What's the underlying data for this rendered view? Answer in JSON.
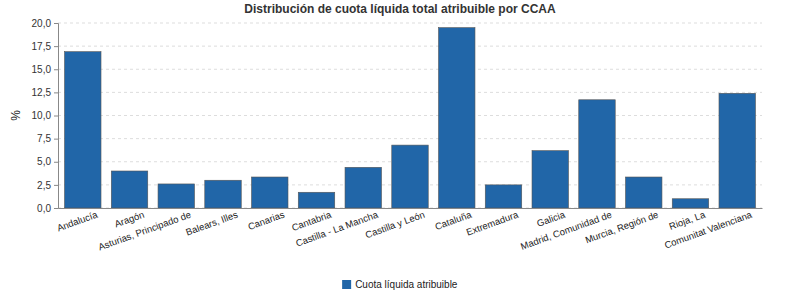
{
  "chart_data": {
    "type": "bar",
    "title": "Distribución de cuota líquida total atribuible por CCAA",
    "y_label": "%",
    "categories": [
      "Andalucía",
      "Aragón",
      "Asturias, Principado de",
      "Balears, Illes",
      "Canarias",
      "Cantabria",
      "Castilla - La Mancha",
      "Castilla y León",
      "Cataluña",
      "Extremadura",
      "Galicia",
      "Madrid, Comunidad de",
      "Murcia, Región de",
      "Rioja, La",
      "Comunitat Valenciana"
    ],
    "series": [
      {
        "name": "Cuota líquida atribuible",
        "color": "#2166a8",
        "values": [
          16.9,
          4.0,
          2.6,
          3.0,
          3.35,
          1.7,
          4.4,
          6.8,
          19.5,
          2.5,
          6.2,
          11.7,
          3.35,
          1.0,
          12.4
        ]
      }
    ],
    "ylim": [
      0,
      20
    ],
    "yticks": [
      {
        "value": 0,
        "label": "0,0"
      },
      {
        "value": 2.5,
        "label": "2,5"
      },
      {
        "value": 5,
        "label": "5,0"
      },
      {
        "value": 7.5,
        "label": "7,5"
      },
      {
        "value": 10,
        "label": "10,0"
      },
      {
        "value": 12.5,
        "label": "12,5"
      },
      {
        "value": 15,
        "label": "15,0"
      },
      {
        "value": 17.5,
        "label": "17,5"
      },
      {
        "value": 20,
        "label": "20,0"
      }
    ],
    "grid": true,
    "legend": "bottom"
  }
}
